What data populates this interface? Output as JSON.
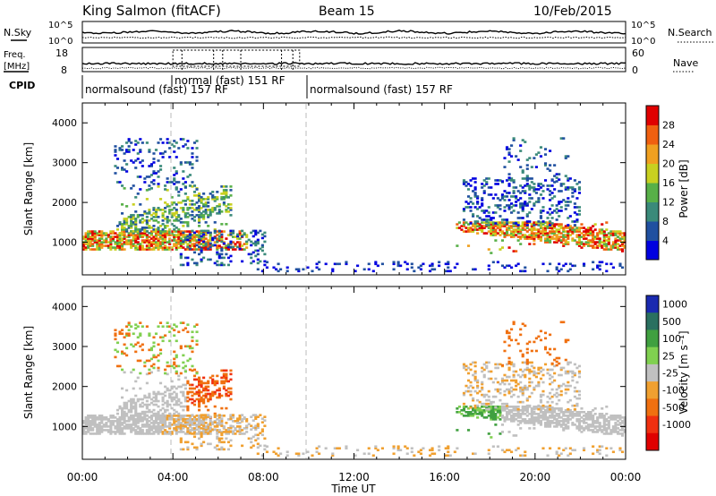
{
  "header": {
    "station": "King Salmon (fitACF)",
    "beam": "Beam 15",
    "date": "10/Feb/2015"
  },
  "top_panel": {
    "left_label": "N.Sky",
    "right_label": "N.Search",
    "left_ticks": [
      "10^5",
      "10^0"
    ],
    "right_ticks": [
      "10^5",
      "10^0"
    ]
  },
  "freq_panel": {
    "left_label_1": "Freq.",
    "left_label_2": "[MHz]",
    "left_ticks": [
      "18",
      "8"
    ],
    "right_label": "Nave",
    "right_ticks": [
      "60",
      "0"
    ]
  },
  "cpid": {
    "label": "CPID",
    "segments": [
      {
        "label": "normalsound (fast) 157 RF",
        "start_hour": 0.0
      },
      {
        "label": "normal (fast) 151 RF",
        "start_hour": 4.0
      },
      {
        "label": "normalsound (fast) 157 RF",
        "start_hour": 10.0
      }
    ]
  },
  "chart_data": [
    {
      "type": "heatmap",
      "panel": "power",
      "ylabel": "Slant Range [km]",
      "ylim": [
        180,
        4500
      ],
      "yticks": [
        "1000",
        "2000",
        "3000",
        "4000"
      ],
      "xlim_hours": [
        0,
        24
      ],
      "colorbar": {
        "label": "Power [dB]",
        "tick_labels": [
          "4",
          "8",
          "12",
          "16",
          "20",
          "24",
          "28"
        ],
        "colors": [
          "#0000e0",
          "#2050a0",
          "#3a8a7a",
          "#58b048",
          "#c8d020",
          "#f0a020",
          "#f06010",
          "#e00000"
        ]
      }
    },
    {
      "type": "heatmap",
      "panel": "velocity",
      "ylabel": "Slant Range [km]",
      "ylim": [
        180,
        4500
      ],
      "yticks": [
        "1000",
        "2000",
        "3000",
        "4000"
      ],
      "xlim_hours": [
        0,
        24
      ],
      "xlabel": "Time UT",
      "xticks": [
        "00:00",
        "04:00",
        "08:00",
        "12:00",
        "16:00",
        "20:00",
        "00:00"
      ],
      "colorbar": {
        "label": "Velocity [m s⁻¹]",
        "tick_labels": [
          "1000",
          "500",
          "100",
          "25",
          "-25",
          "-100",
          "-500",
          "-1000"
        ],
        "colors": [
          "#1a2ab0",
          "#2a7060",
          "#40a040",
          "#80d050",
          "#c0c0c0",
          "#f0a030",
          "#f07010",
          "#f03010",
          "#e00000"
        ]
      }
    }
  ]
}
